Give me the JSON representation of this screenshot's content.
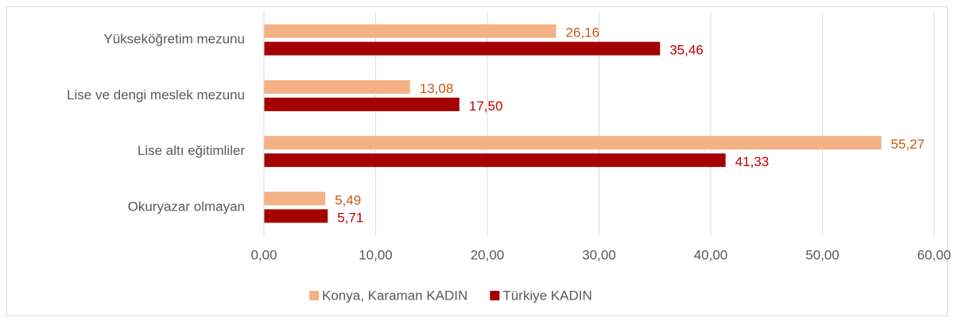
{
  "chart_data": {
    "type": "hbar",
    "categories": [
      "Yükseköğretim mezunu",
      "Lise ve dengi meslek mezunu",
      "Lise altı eğitimliler",
      "Okuryazar olmayan"
    ],
    "series": [
      {
        "name": "Konya, Karaman KADIN",
        "color": "#f4b183",
        "label_color": "#c55a11",
        "values": [
          26.16,
          13.08,
          55.27,
          5.49
        ],
        "value_labels": [
          "26,16",
          "13,08",
          "55,27",
          "5,49"
        ]
      },
      {
        "name": "Türkiye KADIN",
        "color": "#a50000",
        "label_color": "#c00000",
        "values": [
          35.46,
          17.5,
          41.33,
          5.71
        ],
        "value_labels": [
          "35,46",
          "17,50",
          "41,33",
          "5,71"
        ]
      }
    ],
    "xlim": [
      0,
      60
    ],
    "xticks": [
      {
        "value": 0,
        "label": "0,00"
      },
      {
        "value": 10,
        "label": "10,00"
      },
      {
        "value": 20,
        "label": "20,00"
      },
      {
        "value": 30,
        "label": "30,00"
      },
      {
        "value": 40,
        "label": "40,00"
      },
      {
        "value": 50,
        "label": "50,00"
      },
      {
        "value": 60,
        "label": "60,00"
      }
    ],
    "grid": true,
    "legend": "bottom"
  }
}
